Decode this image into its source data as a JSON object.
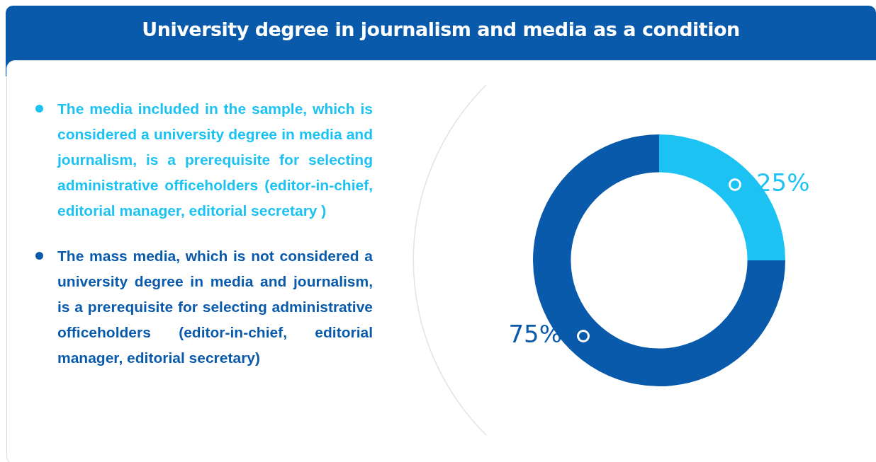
{
  "chart_data": {
    "type": "donut",
    "title": "University degree in journalism and media as a condition",
    "categories": [
      "The media included in the sample, which is considered a university degree in media and journalism, is a prerequisite for selecting administrative officeholders (editor-in-chief, editorial manager, editorial secretary )",
      "The mass media, which is not considered a university degree in media and journalism, is a prerequisite for selecting administrative officeholders (editor-in-chief, editorial manager, editorial secretary)"
    ],
    "values": [
      25,
      75
    ],
    "colors": [
      "#1bc2f2",
      "#0a5aab"
    ],
    "value_labels": [
      "25%",
      "75%"
    ],
    "legend": "left"
  }
}
